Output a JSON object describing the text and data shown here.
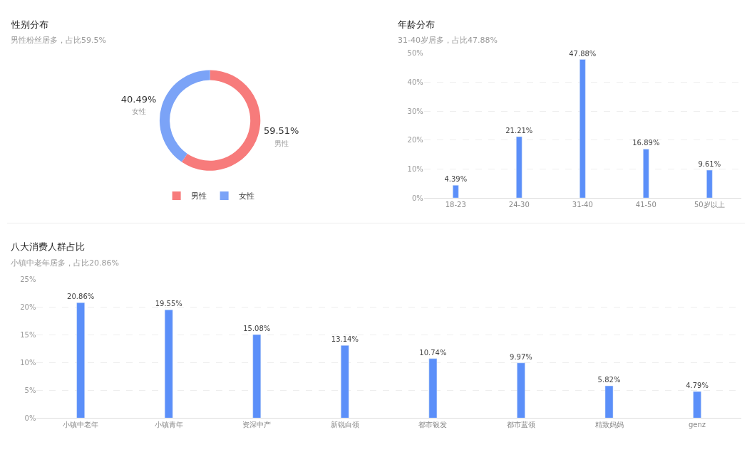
{
  "chart_data": [
    {
      "type": "donut",
      "title": "性别分布",
      "subtitle": "男性粉丝居多，占比59.5%",
      "categories": [
        "男性",
        "女性"
      ],
      "values": [
        59.51,
        40.49
      ],
      "colors": [
        "#f77b7b",
        "#7ba3f7"
      ],
      "value_labels": [
        "59.51%",
        "40.49%"
      ],
      "legend": "bottom"
    },
    {
      "type": "bar",
      "title": "年龄分布",
      "subtitle": "31-40岁居多，占比47.88%",
      "categories": [
        "18-23",
        "24-30",
        "31-40",
        "41-50",
        "50岁以上"
      ],
      "values": [
        4.39,
        21.21,
        47.88,
        16.89,
        9.61
      ],
      "color": "#5b8ff9",
      "value_labels": [
        "4.39%",
        "21.21%",
        "47.88%",
        "16.89%",
        "9.61%"
      ],
      "ylim": [
        0,
        50
      ],
      "yticks": [
        {
          "value": 0,
          "label": "0%"
        },
        {
          "value": 10,
          "label": "10%"
        },
        {
          "value": 20,
          "label": "20%"
        },
        {
          "value": 30,
          "label": "30%"
        },
        {
          "value": 40,
          "label": "40%"
        },
        {
          "value": 50,
          "label": "50%"
        }
      ],
      "grid": "y",
      "legend": false
    },
    {
      "type": "bar",
      "title": "八大消费人群占比",
      "subtitle": "小镇中老年居多，占比20.86%",
      "categories": [
        "小镇中老年",
        "小镇青年",
        "资深中产",
        "新锐白领",
        "都市银发",
        "都市蓝领",
        "精致妈妈",
        "genz"
      ],
      "values": [
        20.86,
        19.55,
        15.08,
        13.14,
        10.74,
        9.97,
        5.82,
        4.79
      ],
      "color": "#5b8ff9",
      "value_labels": [
        "20.86%",
        "19.55%",
        "15.08%",
        "13.14%",
        "10.74%",
        "9.97%",
        "5.82%",
        "4.79%"
      ],
      "ylim": [
        0,
        25
      ],
      "yticks": [
        {
          "value": 0,
          "label": "0%"
        },
        {
          "value": 5,
          "label": "5%"
        },
        {
          "value": 10,
          "label": "10%"
        },
        {
          "value": 15,
          "label": "15%"
        },
        {
          "value": 20,
          "label": "20%"
        },
        {
          "value": 25,
          "label": "25%"
        }
      ],
      "grid": "y",
      "legend": false
    }
  ]
}
